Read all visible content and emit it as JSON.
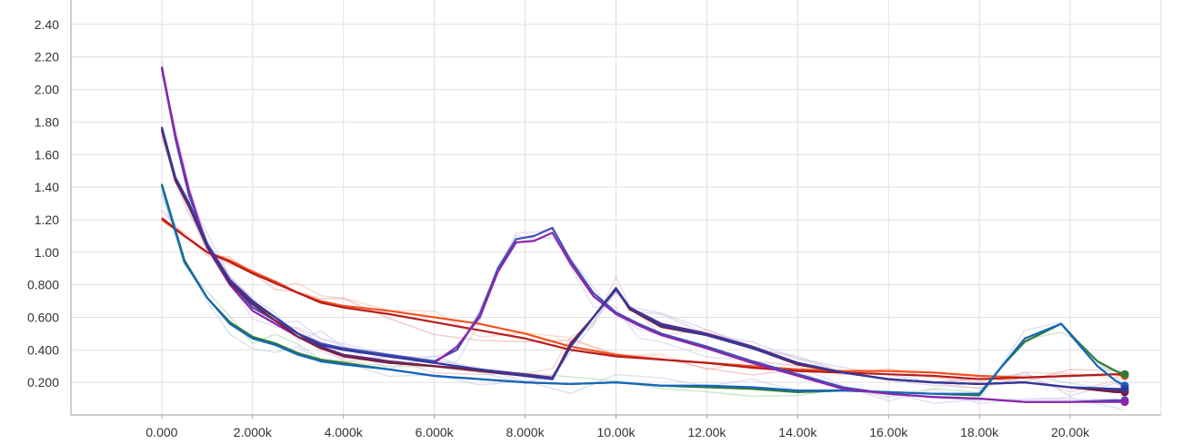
{
  "chart_data": {
    "type": "line",
    "title": "",
    "xlabel": "",
    "ylabel": "",
    "xlim": [
      -2000,
      22000
    ],
    "ylim": [
      0,
      2.55
    ],
    "grid": true,
    "legend": "none",
    "x_ticks": [
      {
        "value": 0,
        "label": "0.000"
      },
      {
        "value": 2000,
        "label": "2.000k"
      },
      {
        "value": 4000,
        "label": "4.000k"
      },
      {
        "value": 6000,
        "label": "6.000k"
      },
      {
        "value": 8000,
        "label": "8.000k"
      },
      {
        "value": 10000,
        "label": "10.00k"
      },
      {
        "value": 12000,
        "label": "12.00k"
      },
      {
        "value": 14000,
        "label": "14.00k"
      },
      {
        "value": 16000,
        "label": "16.00k"
      },
      {
        "value": 18000,
        "label": "18.00k"
      },
      {
        "value": 20000,
        "label": "20.00k"
      }
    ],
    "y_ticks": [
      {
        "value": 0.2,
        "label": "0.200"
      },
      {
        "value": 0.4,
        "label": "0.400"
      },
      {
        "value": 0.6,
        "label": "0.600"
      },
      {
        "value": 0.8,
        "label": "0.800"
      },
      {
        "value": 1.0,
        "label": "1.00"
      },
      {
        "value": 1.2,
        "label": "1.20"
      },
      {
        "value": 1.4,
        "label": "1.40"
      },
      {
        "value": 1.6,
        "label": "1.60"
      },
      {
        "value": 1.8,
        "label": "1.80"
      },
      {
        "value": 2.0,
        "label": "2.00"
      },
      {
        "value": 2.2,
        "label": "2.20"
      },
      {
        "value": 2.4,
        "label": "2.40"
      }
    ],
    "series": [
      {
        "color": "#f4511e",
        "raw_color": "#f8bba5",
        "points": [
          [
            0,
            1.2
          ],
          [
            500,
            1.1
          ],
          [
            1000,
            1.0
          ],
          [
            1500,
            0.95
          ],
          [
            2000,
            0.88
          ],
          [
            2500,
            0.82
          ],
          [
            3000,
            0.75
          ],
          [
            3500,
            0.7
          ],
          [
            4000,
            0.67
          ],
          [
            5000,
            0.64
          ],
          [
            6000,
            0.6
          ],
          [
            7000,
            0.56
          ],
          [
            8000,
            0.5
          ],
          [
            9000,
            0.42
          ],
          [
            10000,
            0.37
          ],
          [
            11000,
            0.34
          ],
          [
            12000,
            0.32
          ],
          [
            13000,
            0.3
          ],
          [
            14000,
            0.28
          ],
          [
            15000,
            0.27
          ],
          [
            16000,
            0.27
          ],
          [
            17000,
            0.26
          ],
          [
            18000,
            0.24
          ],
          [
            19000,
            0.23
          ],
          [
            20000,
            0.24
          ],
          [
            21000,
            0.25
          ],
          [
            21200,
            0.24
          ]
        ]
      },
      {
        "color": "#b71c1c",
        "raw_color": "#e8a6a6",
        "points": [
          [
            0,
            1.21
          ],
          [
            500,
            1.1
          ],
          [
            1000,
            1.0
          ],
          [
            1500,
            0.94
          ],
          [
            2000,
            0.87
          ],
          [
            2500,
            0.81
          ],
          [
            3000,
            0.75
          ],
          [
            3500,
            0.69
          ],
          [
            4000,
            0.66
          ],
          [
            5000,
            0.62
          ],
          [
            6000,
            0.57
          ],
          [
            7000,
            0.52
          ],
          [
            8000,
            0.47
          ],
          [
            9000,
            0.4
          ],
          [
            10000,
            0.36
          ],
          [
            11000,
            0.34
          ],
          [
            12000,
            0.32
          ],
          [
            13000,
            0.29
          ],
          [
            14000,
            0.27
          ],
          [
            15000,
            0.26
          ],
          [
            16000,
            0.25
          ],
          [
            17000,
            0.24
          ],
          [
            18000,
            0.22
          ],
          [
            19000,
            0.23
          ],
          [
            20000,
            0.24
          ],
          [
            21000,
            0.25
          ],
          [
            21200,
            0.25
          ]
        ]
      },
      {
        "color": "#2e7d32",
        "raw_color": "#a5d6a7",
        "points": [
          [
            0,
            1.42
          ],
          [
            500,
            0.95
          ],
          [
            1000,
            0.72
          ],
          [
            1500,
            0.57
          ],
          [
            2000,
            0.48
          ],
          [
            2500,
            0.44
          ],
          [
            3000,
            0.38
          ],
          [
            3500,
            0.34
          ],
          [
            4000,
            0.32
          ],
          [
            5000,
            0.28
          ],
          [
            6000,
            0.24
          ],
          [
            7000,
            0.22
          ],
          [
            8000,
            0.2
          ],
          [
            9000,
            0.19
          ],
          [
            10000,
            0.2
          ],
          [
            11000,
            0.18
          ],
          [
            12000,
            0.17
          ],
          [
            13000,
            0.16
          ],
          [
            14000,
            0.14
          ],
          [
            15000,
            0.15
          ],
          [
            16000,
            0.14
          ],
          [
            17000,
            0.13
          ],
          [
            18000,
            0.12
          ],
          [
            18500,
            0.3
          ],
          [
            19000,
            0.45
          ],
          [
            19800,
            0.56
          ],
          [
            20200,
            0.44
          ],
          [
            20600,
            0.33
          ],
          [
            21000,
            0.27
          ],
          [
            21200,
            0.25
          ]
        ]
      },
      {
        "color": "#1565c0",
        "raw_color": "#bbd0ea",
        "points": [
          [
            0,
            1.41
          ],
          [
            500,
            0.94
          ],
          [
            1000,
            0.72
          ],
          [
            1500,
            0.56
          ],
          [
            2000,
            0.47
          ],
          [
            2500,
            0.43
          ],
          [
            3000,
            0.37
          ],
          [
            3500,
            0.33
          ],
          [
            4000,
            0.31
          ],
          [
            5000,
            0.28
          ],
          [
            6000,
            0.24
          ],
          [
            7000,
            0.22
          ],
          [
            8000,
            0.2
          ],
          [
            9000,
            0.19
          ],
          [
            10000,
            0.2
          ],
          [
            11000,
            0.18
          ],
          [
            12000,
            0.18
          ],
          [
            13000,
            0.17
          ],
          [
            14000,
            0.15
          ],
          [
            15000,
            0.15
          ],
          [
            16000,
            0.14
          ],
          [
            17000,
            0.13
          ],
          [
            18000,
            0.13
          ],
          [
            18500,
            0.3
          ],
          [
            19000,
            0.47
          ],
          [
            19800,
            0.56
          ],
          [
            20200,
            0.43
          ],
          [
            20600,
            0.3
          ],
          [
            21000,
            0.21
          ],
          [
            21200,
            0.18
          ]
        ]
      },
      {
        "color": "#3f51b5",
        "raw_color": "#c5cae9",
        "points": [
          [
            0,
            2.13
          ],
          [
            300,
            1.7
          ],
          [
            600,
            1.35
          ],
          [
            1000,
            1.05
          ],
          [
            1500,
            0.82
          ],
          [
            2000,
            0.66
          ],
          [
            2500,
            0.58
          ],
          [
            3000,
            0.5
          ],
          [
            3500,
            0.44
          ],
          [
            4000,
            0.41
          ],
          [
            5000,
            0.37
          ],
          [
            6000,
            0.33
          ],
          [
            6500,
            0.4
          ],
          [
            7000,
            0.62
          ],
          [
            7400,
            0.9
          ],
          [
            7800,
            1.08
          ],
          [
            8200,
            1.1
          ],
          [
            8600,
            1.15
          ],
          [
            9000,
            0.95
          ],
          [
            9500,
            0.75
          ],
          [
            10000,
            0.63
          ],
          [
            10500,
            0.56
          ],
          [
            11000,
            0.5
          ],
          [
            12000,
            0.42
          ],
          [
            13000,
            0.33
          ],
          [
            14000,
            0.25
          ],
          [
            15000,
            0.17
          ],
          [
            16000,
            0.13
          ],
          [
            17000,
            0.11
          ],
          [
            18000,
            0.1
          ],
          [
            19000,
            0.08
          ],
          [
            20000,
            0.08
          ],
          [
            21000,
            0.09
          ],
          [
            21200,
            0.09
          ]
        ]
      },
      {
        "color": "#8e24aa",
        "raw_color": "#dcc4ec",
        "points": [
          [
            0,
            2.14
          ],
          [
            300,
            1.72
          ],
          [
            600,
            1.38
          ],
          [
            1000,
            1.03
          ],
          [
            1500,
            0.8
          ],
          [
            2000,
            0.64
          ],
          [
            2500,
            0.56
          ],
          [
            3000,
            0.48
          ],
          [
            3500,
            0.43
          ],
          [
            4000,
            0.4
          ],
          [
            5000,
            0.36
          ],
          [
            6000,
            0.32
          ],
          [
            6500,
            0.42
          ],
          [
            7000,
            0.6
          ],
          [
            7400,
            0.88
          ],
          [
            7800,
            1.06
          ],
          [
            8200,
            1.07
          ],
          [
            8600,
            1.12
          ],
          [
            9000,
            0.93
          ],
          [
            9500,
            0.73
          ],
          [
            10000,
            0.62
          ],
          [
            10500,
            0.55
          ],
          [
            11000,
            0.49
          ],
          [
            12000,
            0.41
          ],
          [
            13000,
            0.32
          ],
          [
            14000,
            0.24
          ],
          [
            15000,
            0.16
          ],
          [
            16000,
            0.13
          ],
          [
            17000,
            0.11
          ],
          [
            18000,
            0.1
          ],
          [
            19000,
            0.08
          ],
          [
            20000,
            0.08
          ],
          [
            21000,
            0.08
          ],
          [
            21200,
            0.08
          ]
        ]
      },
      {
        "color": "#5e2a84",
        "raw_color": "#d2bfe0",
        "points": [
          [
            0,
            1.76
          ],
          [
            300,
            1.45
          ],
          [
            600,
            1.3
          ],
          [
            1000,
            1.05
          ],
          [
            1500,
            0.83
          ],
          [
            2000,
            0.7
          ],
          [
            2500,
            0.6
          ],
          [
            3000,
            0.5
          ],
          [
            3500,
            0.42
          ],
          [
            4000,
            0.37
          ],
          [
            5000,
            0.33
          ],
          [
            6000,
            0.3
          ],
          [
            7000,
            0.28
          ],
          [
            8000,
            0.25
          ],
          [
            8600,
            0.23
          ],
          [
            9000,
            0.42
          ],
          [
            9500,
            0.6
          ],
          [
            10000,
            0.77
          ],
          [
            10300,
            0.66
          ],
          [
            11000,
            0.56
          ],
          [
            12000,
            0.5
          ],
          [
            13000,
            0.42
          ],
          [
            14000,
            0.32
          ],
          [
            15000,
            0.26
          ],
          [
            16000,
            0.22
          ],
          [
            17000,
            0.2
          ],
          [
            18000,
            0.19
          ],
          [
            19000,
            0.2
          ],
          [
            20000,
            0.17
          ],
          [
            21000,
            0.15
          ],
          [
            21200,
            0.15
          ]
        ]
      },
      {
        "color": "#7b1f3a",
        "raw_color": "#e3b9c4",
        "points": [
          [
            0,
            1.75
          ],
          [
            300,
            1.44
          ],
          [
            600,
            1.28
          ],
          [
            1000,
            1.03
          ],
          [
            1500,
            0.81
          ],
          [
            2000,
            0.68
          ],
          [
            2500,
            0.58
          ],
          [
            3000,
            0.48
          ],
          [
            3500,
            0.41
          ],
          [
            4000,
            0.36
          ],
          [
            5000,
            0.32
          ],
          [
            6000,
            0.3
          ],
          [
            7000,
            0.27
          ],
          [
            8000,
            0.24
          ],
          [
            8600,
            0.22
          ],
          [
            9000,
            0.44
          ],
          [
            9500,
            0.6
          ],
          [
            10000,
            0.78
          ],
          [
            10300,
            0.65
          ],
          [
            11000,
            0.54
          ],
          [
            12000,
            0.49
          ],
          [
            13000,
            0.41
          ],
          [
            14000,
            0.31
          ],
          [
            15000,
            0.26
          ],
          [
            16000,
            0.22
          ],
          [
            17000,
            0.2
          ],
          [
            18000,
            0.19
          ],
          [
            19000,
            0.2
          ],
          [
            20000,
            0.17
          ],
          [
            21000,
            0.14
          ],
          [
            21200,
            0.14
          ]
        ]
      },
      {
        "color": "#2f3a9e",
        "raw_color": "#c0c6ea",
        "points": [
          [
            0,
            1.77
          ],
          [
            300,
            1.46
          ],
          [
            600,
            1.3
          ],
          [
            1000,
            1.04
          ],
          [
            1500,
            0.82
          ],
          [
            2000,
            0.69
          ],
          [
            2500,
            0.6
          ],
          [
            3000,
            0.5
          ],
          [
            3500,
            0.43
          ],
          [
            4000,
            0.4
          ],
          [
            5000,
            0.36
          ],
          [
            6000,
            0.32
          ],
          [
            7000,
            0.28
          ],
          [
            8000,
            0.24
          ],
          [
            8600,
            0.22
          ],
          [
            9000,
            0.42
          ],
          [
            9500,
            0.6
          ],
          [
            10000,
            0.78
          ],
          [
            10300,
            0.66
          ],
          [
            11000,
            0.55
          ],
          [
            12000,
            0.49
          ],
          [
            13000,
            0.41
          ],
          [
            14000,
            0.32
          ],
          [
            15000,
            0.26
          ],
          [
            16000,
            0.22
          ],
          [
            17000,
            0.2
          ],
          [
            18000,
            0.19
          ],
          [
            19000,
            0.2
          ],
          [
            20000,
            0.17
          ],
          [
            21000,
            0.16
          ],
          [
            21200,
            0.16
          ]
        ]
      }
    ]
  }
}
